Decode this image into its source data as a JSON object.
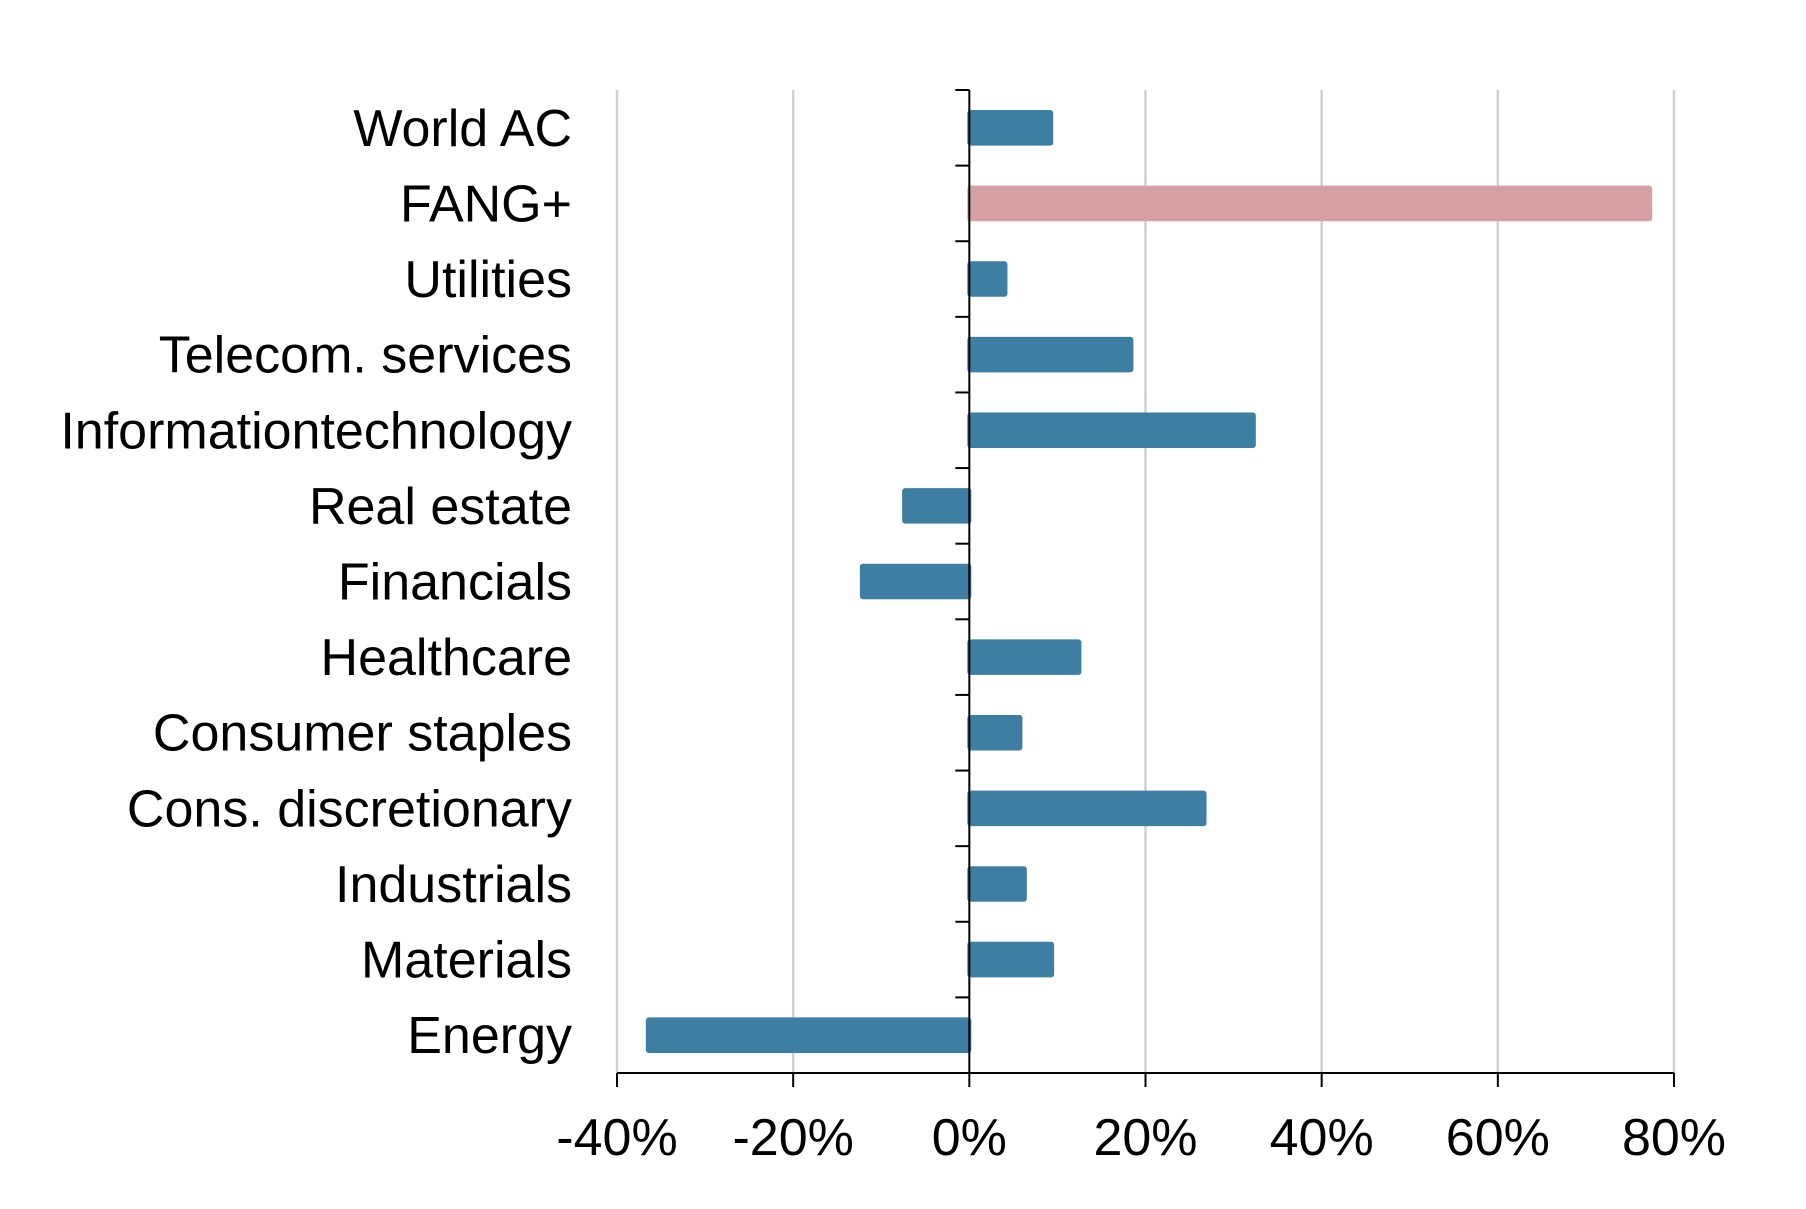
{
  "chart_data": {
    "type": "bar",
    "orientation": "horizontal",
    "categories": [
      "World AC",
      "FANG+",
      "Utilities",
      "Telecom. services",
      "Informationtechnology",
      "Real estate",
      "Financials",
      "Healthcare",
      "Consumer staples",
      "Cons. discretionary",
      "Industrials",
      "Materials",
      "Energy"
    ],
    "values": [
      9.3,
      77.3,
      4.1,
      18.4,
      32.3,
      -7.4,
      -12.2,
      12.5,
      5.8,
      26.7,
      6.3,
      9.4,
      -36.5
    ],
    "colors": [
      "#3e7ea2",
      "#d4a0a5",
      "#3e7ea2",
      "#3e7ea2",
      "#3e7ea2",
      "#3e7ea2",
      "#3e7ea2",
      "#3e7ea2",
      "#3e7ea2",
      "#3e7ea2",
      "#3e7ea2",
      "#3e7ea2",
      "#3e7ea2"
    ],
    "xlim": [
      -40,
      80
    ],
    "xticks": [
      -40,
      -20,
      0,
      20,
      40,
      60,
      80
    ],
    "xtick_labels": [
      "-40%",
      "-20%",
      "0%",
      "20%",
      "40%",
      "60%",
      "80%"
    ],
    "grid": "vertical",
    "legend": "none",
    "title": "",
    "xlabel": "",
    "ylabel": ""
  }
}
